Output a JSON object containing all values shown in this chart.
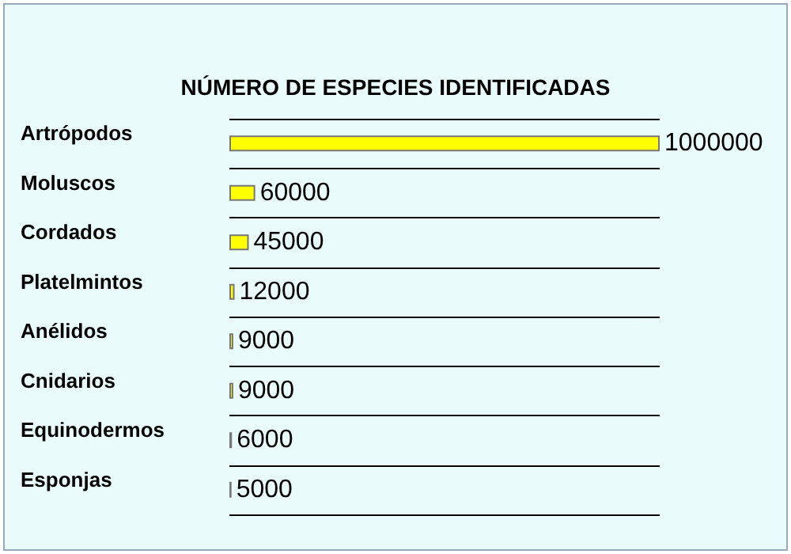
{
  "chart_data": {
    "type": "bar",
    "orientation": "horizontal",
    "title": "NÚMERO DE ESPECIES IDENTIFICADAS",
    "categories": [
      "Artrópodos",
      "Moluscos",
      "Cordados",
      "Platelmintos",
      "Anélidos",
      "Cnidarios",
      "Equinodermos",
      "Esponjas"
    ],
    "values": [
      1000000,
      60000,
      45000,
      12000,
      9000,
      9000,
      6000,
      5000
    ],
    "color": "#ffff00",
    "data_labels": true,
    "grid": "y"
  }
}
